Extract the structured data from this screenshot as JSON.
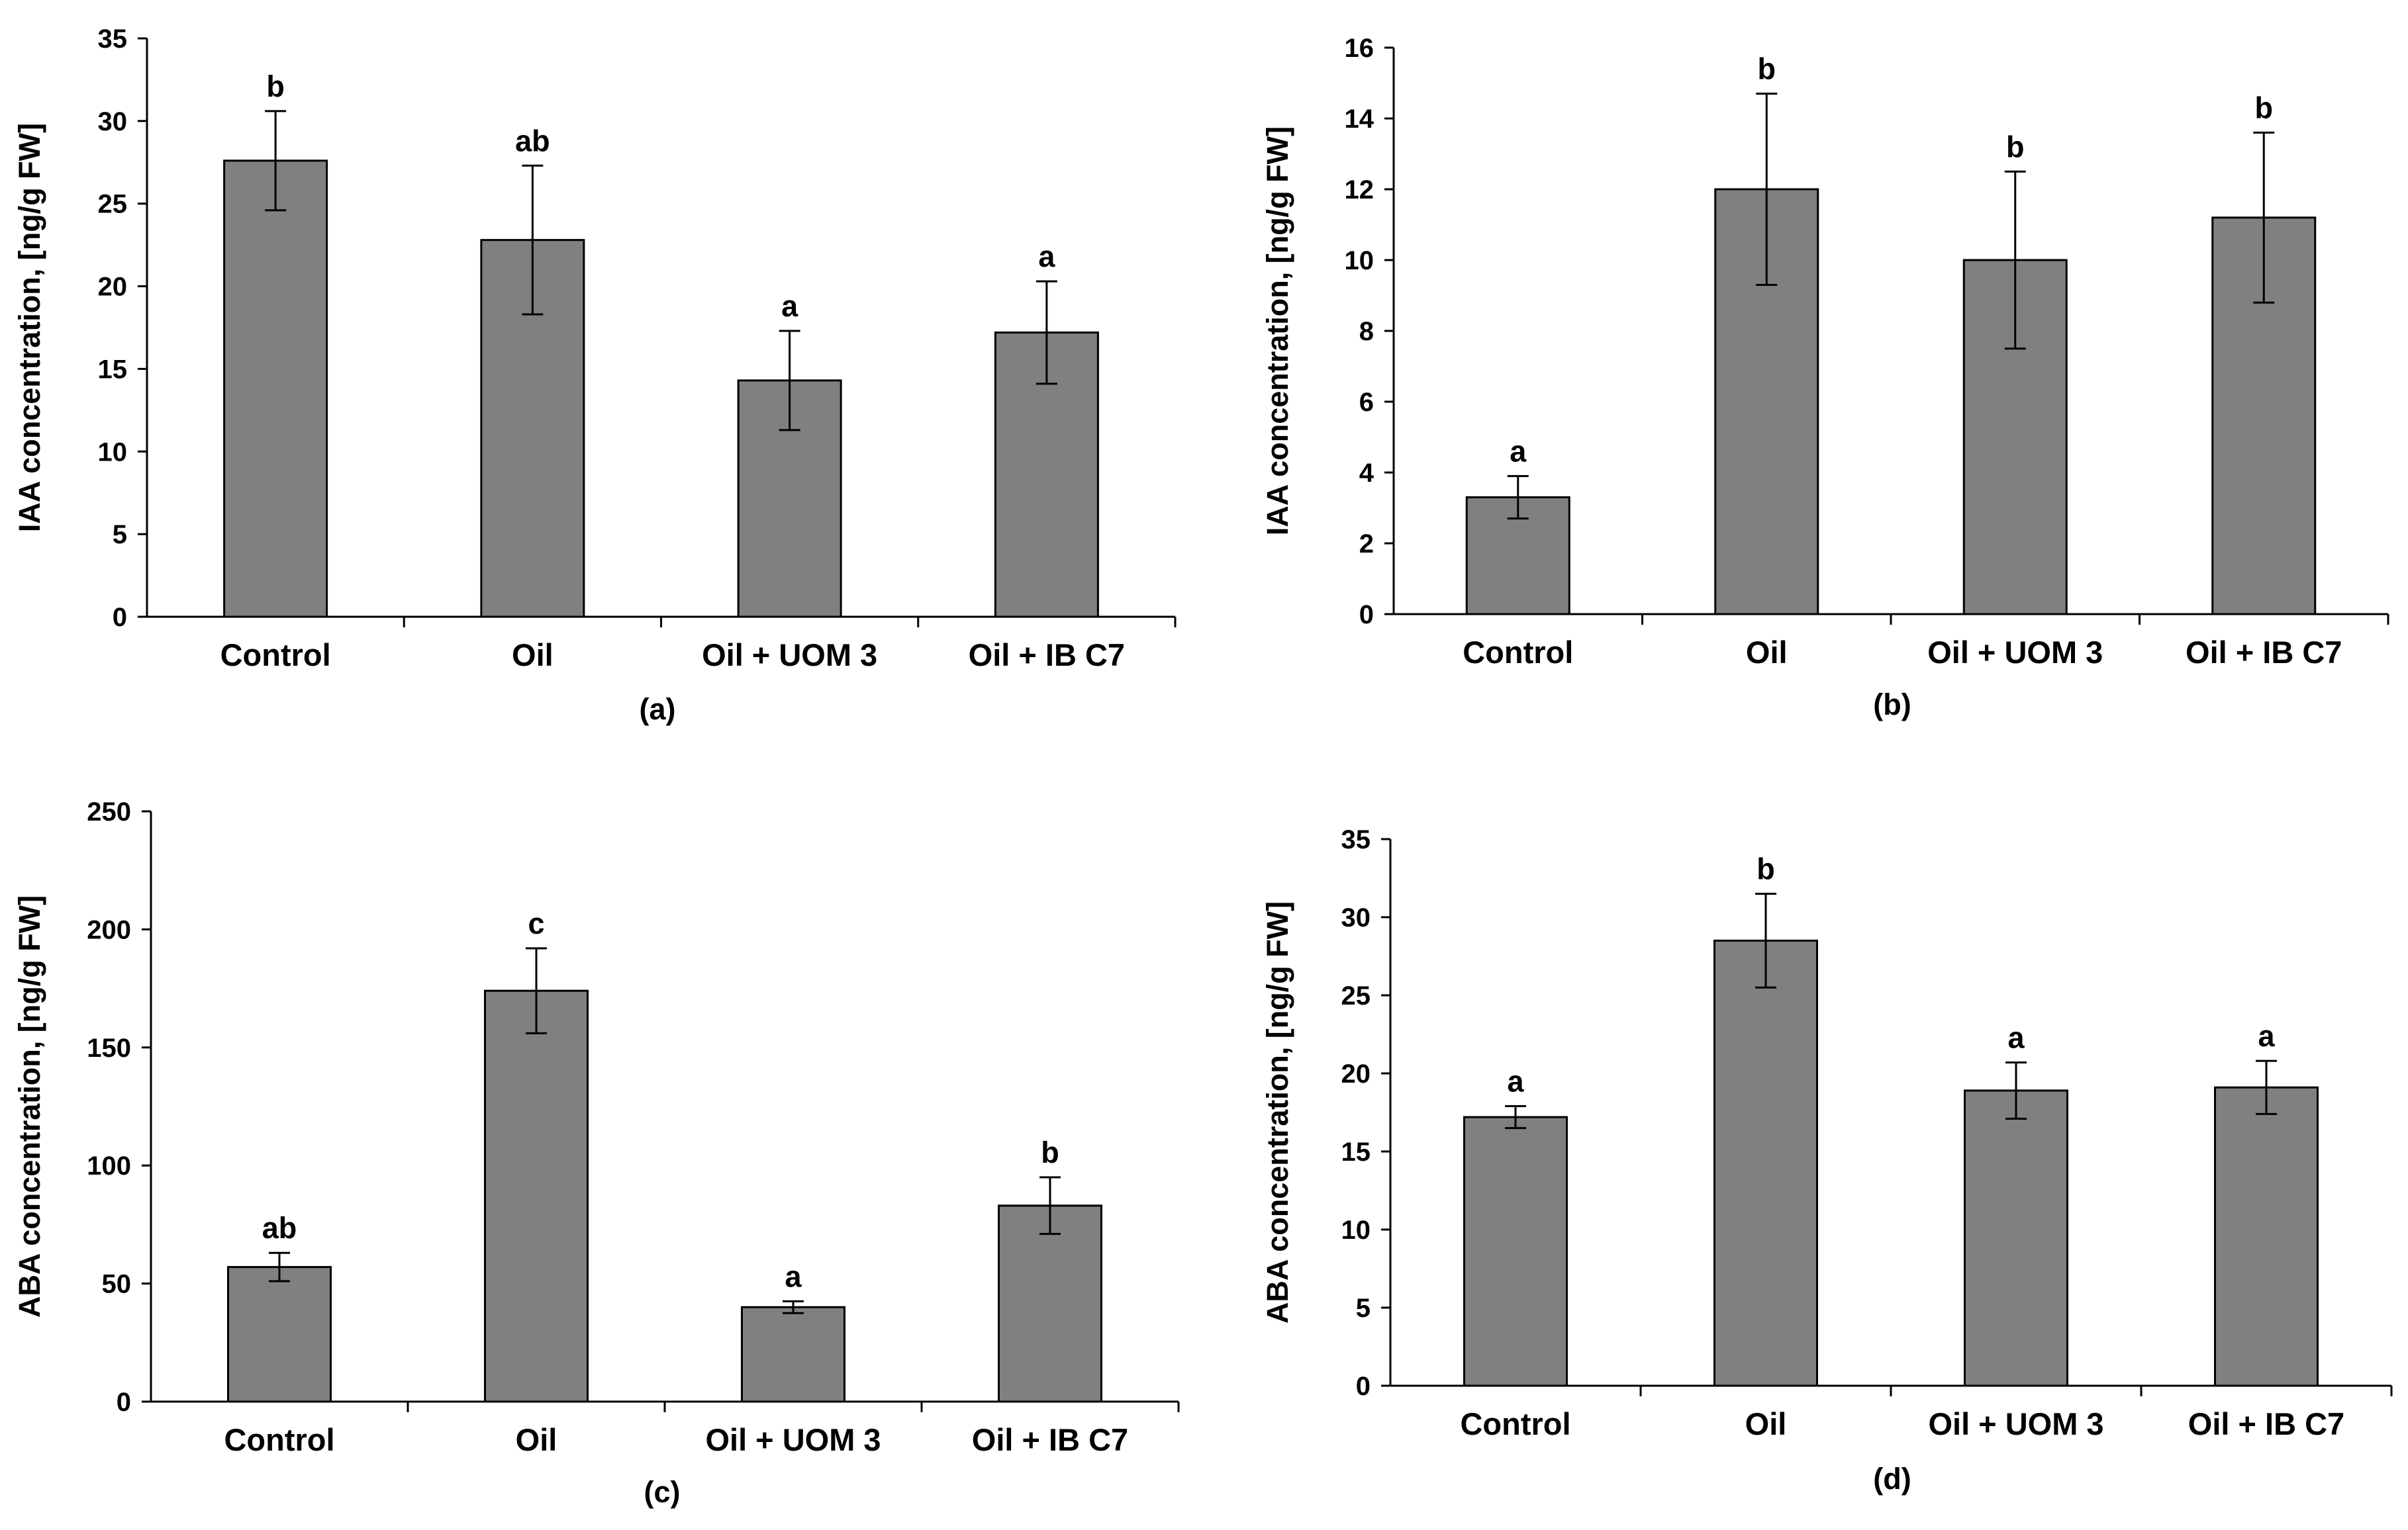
{
  "colors": {
    "bar_fill": "#808080",
    "bar_stroke": "#000000",
    "axis": "#000000",
    "background": "#ffffff"
  },
  "chart_data": [
    {
      "id": "a",
      "type": "bar",
      "panel_label": "(a)",
      "ylabel": "IAA concentration,  [ng/g FW]",
      "xlabel": "",
      "categories": [
        "Control",
        "Oil",
        "Oil + UOM 3",
        "Oil + IB C7"
      ],
      "values": [
        27.6,
        22.8,
        14.3,
        17.2
      ],
      "errors": [
        3.0,
        4.5,
        3.0,
        3.1
      ],
      "significance": [
        "b",
        "ab",
        "a",
        "a"
      ],
      "ylim": [
        0,
        35
      ],
      "yticks": [
        0,
        5,
        10,
        15,
        20,
        25,
        30,
        35
      ],
      "grid": false
    },
    {
      "id": "b",
      "type": "bar",
      "panel_label": "(b)",
      "ylabel": "IAA concentration,  [ng/g FW]",
      "xlabel": "",
      "categories": [
        "Control",
        "Oil",
        "Oil + UOM 3",
        "Oil + IB C7"
      ],
      "values": [
        3.3,
        12.0,
        10.0,
        11.2
      ],
      "errors": [
        0.6,
        2.7,
        2.5,
        2.4
      ],
      "significance": [
        "a",
        "b",
        "b",
        "b"
      ],
      "ylim": [
        0,
        16
      ],
      "yticks": [
        0,
        2,
        4,
        6,
        8,
        10,
        12,
        14,
        16
      ],
      "grid": false
    },
    {
      "id": "c",
      "type": "bar",
      "panel_label": "(c)",
      "ylabel": "ABA concentration,  [ng/g FW]",
      "xlabel": "",
      "categories": [
        "Control",
        "Oil",
        "Oil + UOM 3",
        "Oil + IB C7"
      ],
      "values": [
        57,
        174,
        40,
        83
      ],
      "errors": [
        6,
        18,
        2.5,
        12
      ],
      "significance": [
        "ab",
        "c",
        "a",
        "b"
      ],
      "ylim": [
        0,
        250
      ],
      "yticks": [
        0,
        50,
        100,
        150,
        200,
        250
      ],
      "grid": false
    },
    {
      "id": "d",
      "type": "bar",
      "panel_label": "(d)",
      "ylabel": "ABA concentration,  [ng/g FW]",
      "xlabel": "",
      "categories": [
        "Control",
        "Oil",
        "Oil + UOM 3",
        "Oil + IB C7"
      ],
      "values": [
        17.2,
        28.5,
        18.9,
        19.1
      ],
      "errors": [
        0.7,
        3.0,
        1.8,
        1.7
      ],
      "significance": [
        "a",
        "b",
        "a",
        "a"
      ],
      "ylim": [
        0,
        35
      ],
      "yticks": [
        0,
        5,
        10,
        15,
        20,
        25,
        30,
        35
      ],
      "grid": false
    }
  ]
}
